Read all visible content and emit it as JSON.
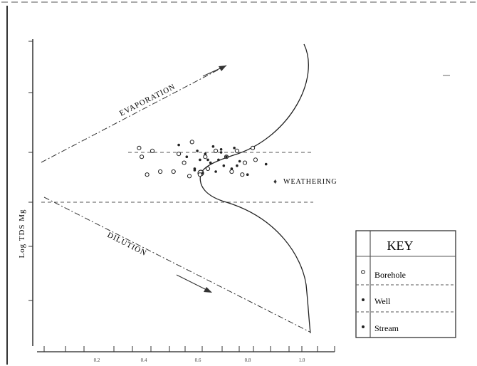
{
  "chart_data": {
    "type": "scatter",
    "ylabel": "Log TDS Mg",
    "xticks": [
      "0.2",
      "0.4",
      "0.6",
      "0.8",
      "1.0"
    ],
    "xlim": [
      0,
      1.05
    ],
    "ylim": [
      0,
      10
    ],
    "trend_labels": {
      "evaporation": "EVAPORATION",
      "dilution": "DILUTION",
      "weathering": "WEATHERING"
    },
    "weathering_band": [
      5.05,
      6.65
    ],
    "series": [
      {
        "name": "Borehole",
        "marker": "open-circle",
        "x": [
          0.37,
          0.38,
          0.4,
          0.42,
          0.45,
          0.5,
          0.52,
          0.54,
          0.56,
          0.57,
          0.6,
          0.62,
          0.63,
          0.66,
          0.7,
          0.72,
          0.74,
          0.76,
          0.77,
          0.8,
          0.81
        ],
        "y": [
          6.4,
          6.1,
          5.5,
          6.3,
          5.6,
          5.6,
          6.2,
          5.9,
          5.45,
          6.6,
          5.5,
          6.1,
          5.7,
          6.3,
          6.1,
          5.6,
          6.3,
          5.5,
          5.9,
          6.4,
          6.0
        ]
      },
      {
        "name": "Well",
        "marker": "filled-dot",
        "x": [
          0.52,
          0.55,
          0.58,
          0.59,
          0.6,
          0.61,
          0.62,
          0.64,
          0.65,
          0.66,
          0.67,
          0.68,
          0.69,
          0.7,
          0.72,
          0.73,
          0.75,
          0.78,
          0.85
        ],
        "y": [
          6.5,
          6.1,
          5.7,
          6.3,
          6.0,
          5.55,
          6.2,
          5.9,
          6.45,
          5.6,
          6.0,
          6.35,
          5.8,
          6.1,
          5.7,
          6.4,
          5.95,
          5.5,
          5.85
        ]
      },
      {
        "name": "Stream",
        "marker": "filled-dot",
        "x": [
          0.58,
          0.63,
          0.68,
          0.74
        ],
        "y": [
          5.65,
          6.0,
          6.25,
          5.8
        ]
      }
    ],
    "legend": {
      "title": "KEY",
      "placement": "right",
      "entries": [
        "Borehole",
        "Well",
        "Stream"
      ]
    }
  }
}
